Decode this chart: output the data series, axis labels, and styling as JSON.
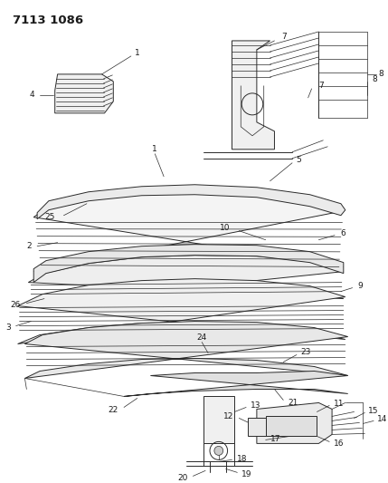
{
  "title": "7113 1086",
  "background_color": "#ffffff",
  "line_color": "#2a2a2a",
  "label_color": "#1a1a1a",
  "label_fontsize": 6.5,
  "title_fontsize": 9.5,
  "fig_width": 4.29,
  "fig_height": 5.33,
  "dpi": 100
}
